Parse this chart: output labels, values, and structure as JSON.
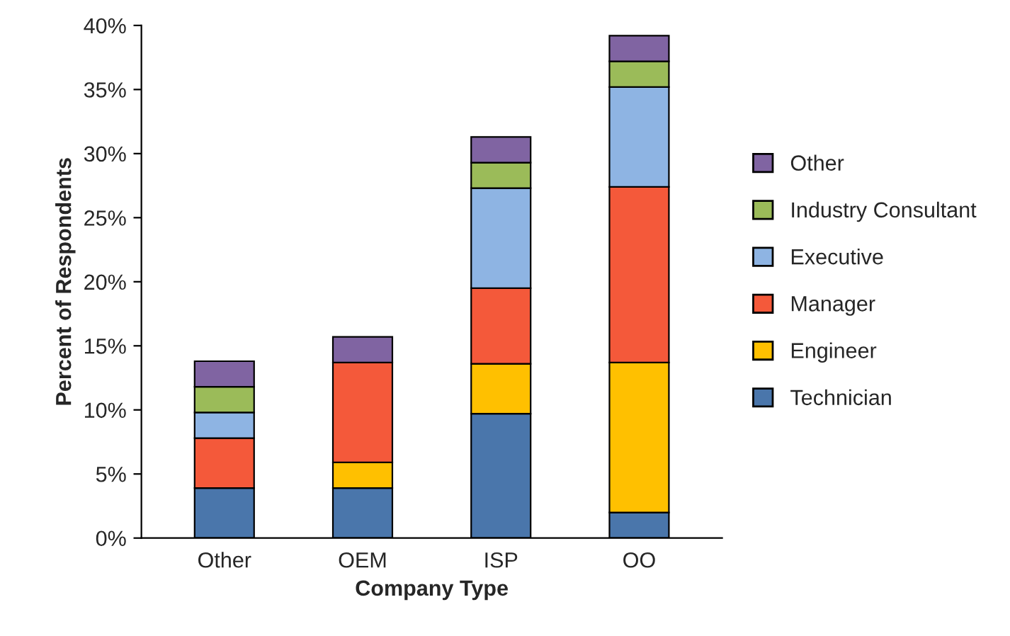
{
  "chart_data": {
    "type": "bar",
    "stacked": true,
    "xlabel": "Company Type",
    "ylabel": "Percent of Respondents",
    "categories": [
      "Other",
      "OEM",
      "ISP",
      "OO"
    ],
    "series": [
      {
        "name": "Technician",
        "color": "#4a76ab",
        "values": [
          3.9,
          3.9,
          9.7,
          2.0
        ]
      },
      {
        "name": "Engineer",
        "color": "#ffc000",
        "values": [
          null,
          2.0,
          3.9,
          11.7
        ]
      },
      {
        "name": "Manager",
        "color": "#f4593a",
        "values": [
          3.9,
          7.8,
          5.9,
          13.7
        ]
      },
      {
        "name": "Executive",
        "color": "#8eb4e3",
        "values": [
          2.0,
          null,
          7.8,
          7.8
        ]
      },
      {
        "name": "Industry Consultant",
        "color": "#9bbb59",
        "values": [
          2.0,
          null,
          2.0,
          2.0
        ]
      },
      {
        "name": "Other",
        "color": "#8064a2",
        "values": [
          2.0,
          2.0,
          2.0,
          2.0
        ]
      }
    ],
    "ylim": [
      0,
      40
    ],
    "yticks": [
      {
        "value": 0,
        "label": "0%"
      },
      {
        "value": 5,
        "label": "5%"
      },
      {
        "value": 10,
        "label": "10%"
      },
      {
        "value": 15,
        "label": "15%"
      },
      {
        "value": 20,
        "label": "20%"
      },
      {
        "value": 25,
        "label": "25%"
      },
      {
        "value": 30,
        "label": "30%"
      },
      {
        "value": 35,
        "label": "35%"
      },
      {
        "value": 40,
        "label": "40%"
      }
    ],
    "grid": false,
    "legend": "right"
  }
}
